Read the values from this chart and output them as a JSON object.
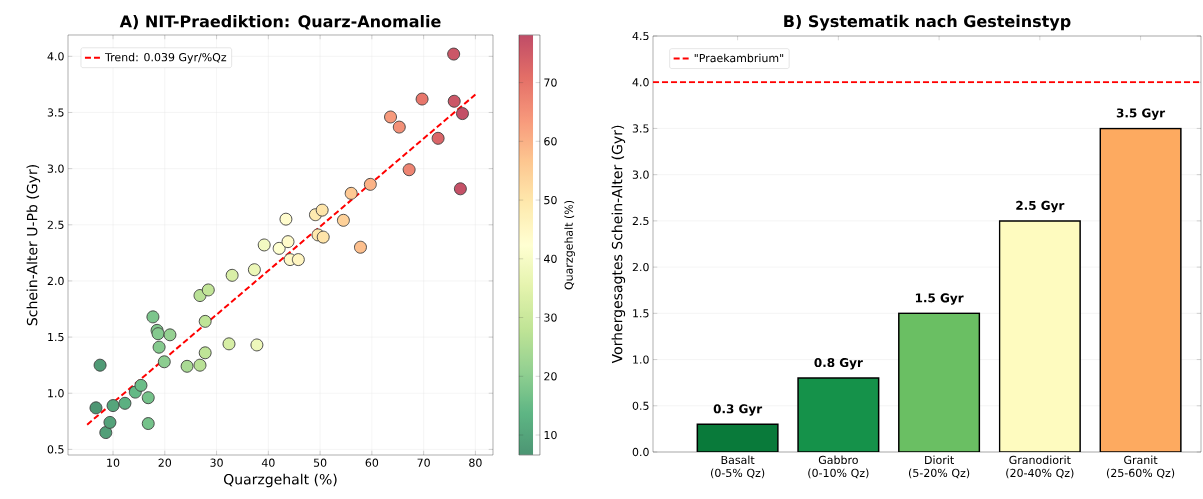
{
  "chart_data": [
    {
      "type": "scatter",
      "title": "A) NIT-Praediktion: Quarz-Anomalie",
      "xlabel": "Quarzgehalt (%)",
      "ylabel": "Schein-Alter U-Pb (Gyr)",
      "clabel": "Quarzgehalt (%)",
      "xlim": [
        1.3,
        83.4
      ],
      "ylim": [
        0.45,
        4.19
      ],
      "xticks": [
        10,
        20,
        30,
        40,
        50,
        60,
        70,
        80
      ],
      "yticks": [
        {
          "value": 0.5,
          "label": "0.5"
        },
        {
          "value": 1.0,
          "label": "1.0"
        },
        {
          "value": 1.5,
          "label": "1.5"
        },
        {
          "value": 2.0,
          "label": "2.0"
        },
        {
          "value": 2.5,
          "label": "2.5"
        },
        {
          "value": 3.0,
          "label": "3.0"
        },
        {
          "value": 3.5,
          "label": "3.5"
        },
        {
          "value": 4.0,
          "label": "4.0"
        }
      ],
      "clim": [
        6.6,
        78.1
      ],
      "cticks": [
        10,
        20,
        30,
        40,
        50,
        60,
        70
      ],
      "grid": true,
      "legend": "top left",
      "series": [
        {
          "type": "scatter",
          "marker": "circle",
          "colors": [
            "#4f9a75",
            "#4d9673",
            "#529f78",
            "#54a27a",
            "#55a57b",
            "#5bb081",
            "#63b986",
            "#6bbd88",
            "#75c28a",
            "#75c28a",
            "#7cc58c",
            "#82c88d",
            "#84c98e",
            "#85ca8e",
            "#95d192",
            "#8ccd90",
            "#a9da94",
            "#b9e196",
            "#b9e196",
            "#c2e598",
            "#bfe497",
            "#bfe497",
            "#d9efa7",
            "#d6eea5",
            "#ecf7b8",
            "#eef8bb",
            "#f3fac2",
            "#feffd1",
            "#fffccd",
            "#fffbcb",
            "#fff9c9",
            "#fff5c1",
            "#feebb0",
            "#fee5aa",
            "#fee9ad",
            "#fee4a9",
            "#fed199",
            "#fec993",
            "#fdbf8d",
            "#fbb387",
            "#f79a7c",
            "#f39077",
            "#ee8472",
            "#e7766b",
            "#da6568",
            "#cb5767",
            "#cb5767",
            "#c34f67",
            "#c55167"
          ],
          "x": [
            7.5,
            6.7,
            8.6,
            9.4,
            10,
            12.3,
            14.3,
            15.4,
            16.8,
            16.8,
            17.7,
            18.5,
            18.7,
            18.9,
            21,
            19.9,
            24.3,
            26.8,
            26.8,
            28.4,
            27.8,
            27.8,
            33,
            32.4,
            37.3,
            37.8,
            39.2,
            42.1,
            43.4,
            43.8,
            44.2,
            45.8,
            49.1,
            50.4,
            49.6,
            50.6,
            54.5,
            56,
            57.8,
            59.7,
            63.6,
            65.3,
            67.2,
            69.7,
            72.8,
            75.8,
            75.9,
            77.5,
            77.1
          ],
          "values": [
            1.25,
            0.87,
            0.65,
            0.74,
            0.89,
            0.91,
            1.01,
            1.07,
            0.96,
            0.73,
            1.68,
            1.56,
            1.53,
            1.41,
            1.52,
            1.28,
            1.24,
            1.25,
            1.87,
            1.92,
            1.64,
            1.36,
            2.05,
            1.44,
            2.1,
            1.43,
            2.32,
            2.29,
            2.55,
            2.35,
            2.19,
            2.19,
            2.59,
            2.63,
            2.41,
            2.39,
            2.54,
            2.78,
            2.3,
            2.86,
            3.46,
            3.37,
            2.99,
            3.62,
            3.27,
            4.02,
            3.6,
            3.49,
            2.82
          ]
        },
        {
          "type": "line",
          "name": "Trend: 0.039 Gyr/%Qz",
          "color": "#ff0000",
          "line_style": "dashed",
          "marker": "none",
          "x": [
            5,
            80
          ],
          "values": [
            0.72,
            3.66
          ]
        }
      ]
    },
    {
      "type": "bar",
      "title": "B) Systematik nach Gesteinstyp",
      "ylabel": "Vorhergesagtes Schein-Alter (Gyr)",
      "categories": [
        "Basalt (0-5% Qz)",
        "Gabbro (0-10% Qz)",
        "Diorit (5-20% Qz)",
        "Granodiorit (20-40% Qz)",
        "Granit (25-60% Qz)"
      ],
      "values": [
        0.3,
        0.8,
        1.5,
        2.5,
        3.5
      ],
      "colors": [
        "#097a3a",
        "#15924a",
        "#6abf63",
        "#fefbbf",
        "#fdaa60"
      ],
      "value_labels": [
        "0.3 Gyr",
        "0.8 Gyr",
        "1.5 Gyr",
        "2.5 Gyr",
        "3.5 Gyr"
      ],
      "ylim": [
        0,
        4.5
      ],
      "yticks": [
        {
          "value": 0,
          "label": "0.0"
        },
        {
          "value": 0.5,
          "label": "0.5"
        },
        {
          "value": 1.0,
          "label": "1.0"
        },
        {
          "value": 1.5,
          "label": "1.5"
        },
        {
          "value": 2.0,
          "label": "2.0"
        },
        {
          "value": 2.5,
          "label": "2.5"
        },
        {
          "value": 3.0,
          "label": "3.0"
        },
        {
          "value": 3.5,
          "label": "3.5"
        },
        {
          "value": 4.0,
          "label": "4.0"
        },
        {
          "value": 4.5,
          "label": "4.5"
        }
      ],
      "grid": "y",
      "legend": "top left",
      "ref_lines": [
        {
          "axis": "y",
          "value": 4.0,
          "label": "\"Praekambrium\"",
          "color": "#ff0000",
          "line_style": "dashed"
        }
      ]
    }
  ]
}
